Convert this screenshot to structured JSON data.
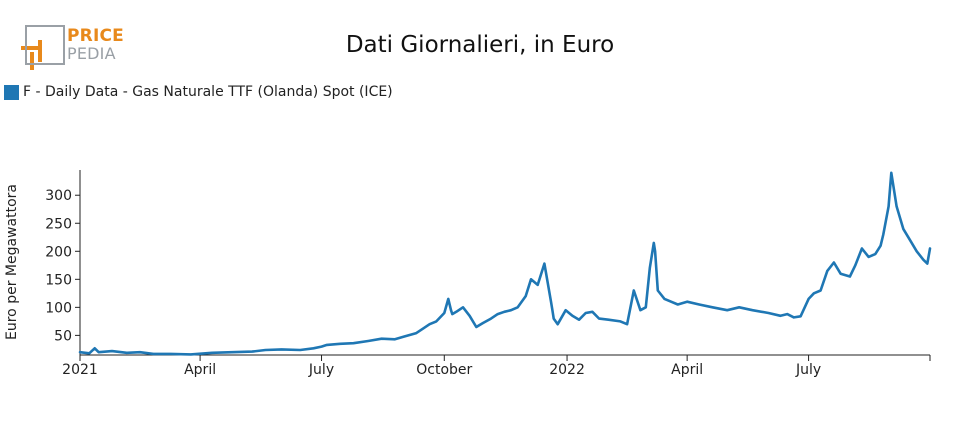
{
  "header": {
    "title": "Dati Giornalieri, in Euro",
    "logo_line1": "PRICE",
    "logo_line2": "PEDIA"
  },
  "colors": {
    "series": "#1f77b4",
    "logo_orange": "#e8891b",
    "logo_gray": "#9aa0a6"
  },
  "chart_data": {
    "type": "line",
    "title": "Dati Giornalieri, in Euro",
    "xlabel": "",
    "ylabel": "Euro per Megawattora",
    "ylim": [
      15,
      345
    ],
    "xlim": [
      "2021-01-01",
      "2022-09-30"
    ],
    "yticks": [
      50,
      100,
      150,
      200,
      250,
      300
    ],
    "xticks": [
      {
        "date": "2021-01-01",
        "label": "2021"
      },
      {
        "date": "2021-04-01",
        "label": "April"
      },
      {
        "date": "2021-07-01",
        "label": "July"
      },
      {
        "date": "2021-10-01",
        "label": "October"
      },
      {
        "date": "2022-01-01",
        "label": "2022"
      },
      {
        "date": "2022-04-01",
        "label": "April"
      },
      {
        "date": "2022-07-01",
        "label": "July"
      }
    ],
    "grid": false,
    "legend_position": "top-left",
    "series": [
      {
        "name": "F - Daily Data - Gas Naturale TTF (Olanda) Spot (ICE)",
        "x": [
          "2021-01-01",
          "2021-01-08",
          "2021-01-12",
          "2021-01-15",
          "2021-01-25",
          "2021-02-05",
          "2021-02-15",
          "2021-02-25",
          "2021-03-10",
          "2021-03-25",
          "2021-04-10",
          "2021-04-25",
          "2021-05-10",
          "2021-05-20",
          "2021-06-01",
          "2021-06-15",
          "2021-06-25",
          "2021-07-01",
          "2021-07-05",
          "2021-07-15",
          "2021-07-25",
          "2021-08-05",
          "2021-08-15",
          "2021-08-25",
          "2021-09-01",
          "2021-09-10",
          "2021-09-15",
          "2021-09-20",
          "2021-09-25",
          "2021-10-01",
          "2021-10-04",
          "2021-10-06",
          "2021-10-07",
          "2021-10-10",
          "2021-10-15",
          "2021-10-20",
          "2021-10-25",
          "2021-10-30",
          "2021-11-05",
          "2021-11-10",
          "2021-11-15",
          "2021-11-20",
          "2021-11-25",
          "2021-12-01",
          "2021-12-05",
          "2021-12-10",
          "2021-12-15",
          "2021-12-20",
          "2021-12-21",
          "2021-12-22",
          "2021-12-25",
          "2021-12-31",
          "2022-01-05",
          "2022-01-10",
          "2022-01-15",
          "2022-01-20",
          "2022-01-25",
          "2022-02-01",
          "2022-02-10",
          "2022-02-15",
          "2022-02-20",
          "2022-02-25",
          "2022-03-01",
          "2022-03-04",
          "2022-03-07",
          "2022-03-08",
          "2022-03-10",
          "2022-03-15",
          "2022-03-20",
          "2022-03-25",
          "2022-04-01",
          "2022-04-10",
          "2022-04-20",
          "2022-05-01",
          "2022-05-10",
          "2022-05-20",
          "2022-06-01",
          "2022-06-10",
          "2022-06-15",
          "2022-06-20",
          "2022-06-25",
          "2022-07-01",
          "2022-07-05",
          "2022-07-10",
          "2022-07-15",
          "2022-07-20",
          "2022-07-25",
          "2022-08-01",
          "2022-08-05",
          "2022-08-10",
          "2022-08-15",
          "2022-08-20",
          "2022-08-24",
          "2022-08-26",
          "2022-08-30",
          "2022-09-01",
          "2022-09-05",
          "2022-09-10",
          "2022-09-15",
          "2022-09-20",
          "2022-09-25",
          "2022-09-28",
          "2022-09-30"
        ],
        "values": [
          20,
          18,
          27,
          20,
          22,
          19,
          20,
          17,
          17,
          16,
          19,
          20,
          21,
          24,
          25,
          24,
          27,
          30,
          33,
          35,
          36,
          40,
          44,
          43,
          48,
          54,
          62,
          70,
          75,
          90,
          115,
          95,
          88,
          92,
          100,
          85,
          65,
          72,
          80,
          88,
          92,
          95,
          100,
          120,
          150,
          140,
          178,
          110,
          95,
          80,
          70,
          95,
          85,
          78,
          90,
          92,
          80,
          78,
          75,
          70,
          130,
          95,
          100,
          170,
          215,
          200,
          130,
          115,
          110,
          105,
          110,
          105,
          100,
          95,
          100,
          95,
          90,
          85,
          88,
          82,
          84,
          115,
          125,
          130,
          165,
          180,
          160,
          155,
          175,
          205,
          190,
          195,
          210,
          230,
          280,
          340,
          280,
          240,
          220,
          200,
          185,
          178,
          205
        ]
      }
    ]
  }
}
